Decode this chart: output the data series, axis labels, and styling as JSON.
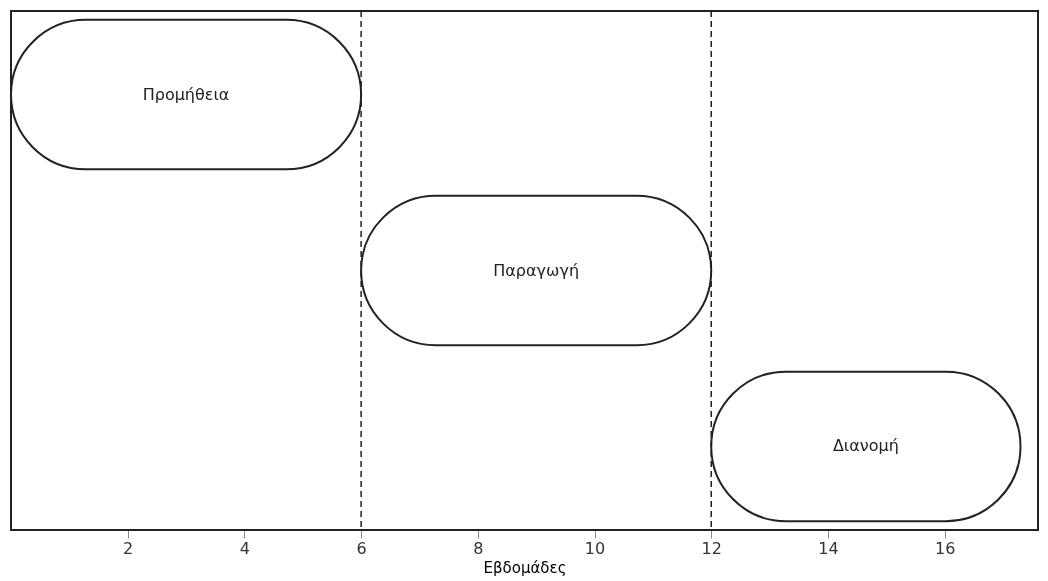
{
  "chart_data": {
    "type": "bar",
    "orientation": "horizontal",
    "xlabel": "Εβδομάδες",
    "categories": [
      "Προμήθεια",
      "Παραγωγή",
      "Διανομή"
    ],
    "base": [
      0,
      6,
      12
    ],
    "values": [
      6,
      6,
      5.3
    ],
    "color": "#ffffff",
    "xlim": [
      0,
      17.6
    ],
    "xticks": [
      2,
      4,
      6,
      8,
      10,
      12,
      14,
      16
    ],
    "ref_lines": [
      {
        "axis": "x",
        "value": 6,
        "line_style": "dashed"
      },
      {
        "axis": "x",
        "value": 12,
        "line_style": "dashed"
      }
    ],
    "grid": false
  }
}
